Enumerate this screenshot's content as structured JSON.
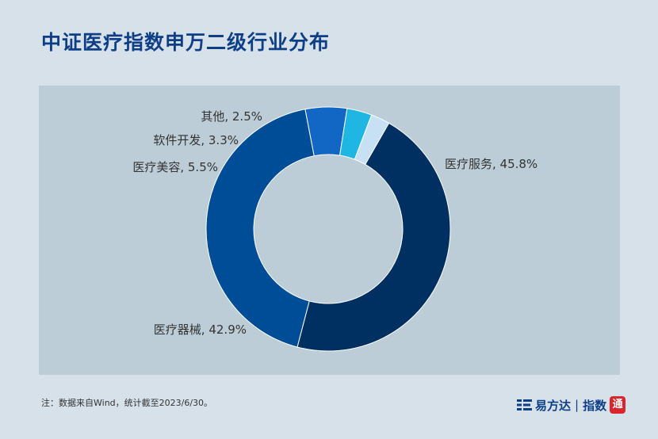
{
  "title": "中证医疗指数申万二级行业分布",
  "note": "注：数据来自Wind，统计截至2023/6/30。",
  "brand": {
    "name": "易方达",
    "separator": "|",
    "sub": "指数",
    "seal": "通"
  },
  "colors": {
    "background": "#d6e1ea",
    "panel": "#bccdd7",
    "title": "#0e3f86"
  },
  "chart_data": {
    "type": "pie",
    "variant": "donut",
    "title": "",
    "slices": [
      {
        "label": "医疗服务",
        "value": 45.8,
        "display": "医疗服务, 45.8%",
        "color": "#002f61"
      },
      {
        "label": "医疗器械",
        "value": 42.9,
        "display": "医疗器械, 42.9%",
        "color": "#004d97"
      },
      {
        "label": "医疗美容",
        "value": 5.5,
        "display": "医疗美容, 5.5%",
        "color": "#1266c4"
      },
      {
        "label": "软件开发",
        "value": 3.3,
        "display": "软件开发, 3.3%",
        "color": "#1fb6e3"
      },
      {
        "label": "其他",
        "value": 2.5,
        "display": "其他, 2.5%",
        "color": "#c8e0f4"
      }
    ]
  }
}
